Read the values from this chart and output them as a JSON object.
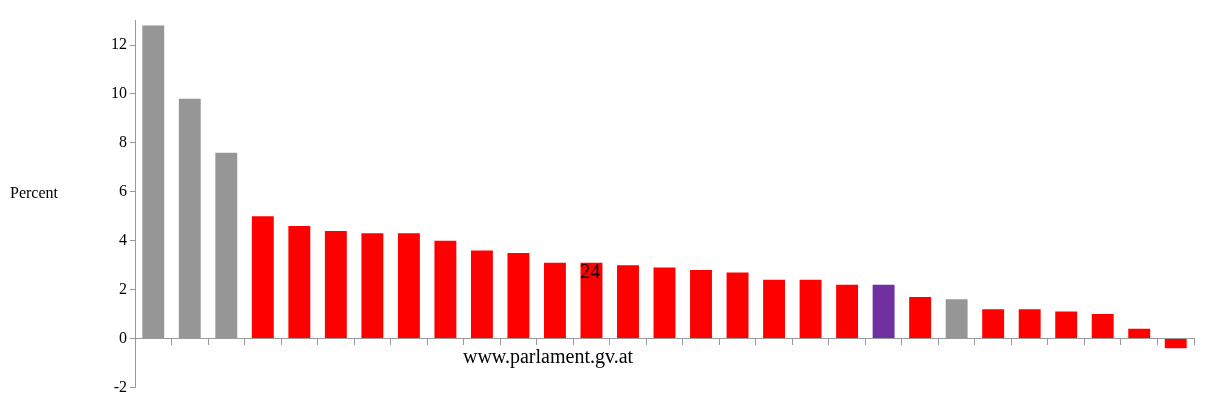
{
  "chart_data": {
    "type": "bar",
    "ylabel": "Percent",
    "categories": [
      null,
      null,
      null,
      null,
      null,
      null,
      null,
      null,
      null,
      null,
      null,
      null,
      null,
      null,
      null,
      null,
      null,
      null,
      null,
      null,
      null,
      null,
      null,
      null,
      null,
      null,
      null,
      null,
      null
    ],
    "values": [
      12.8,
      9.8,
      7.6,
      5.0,
      4.6,
      4.4,
      4.3,
      4.3,
      4.0,
      3.6,
      3.5,
      3.1,
      3.1,
      3.0,
      2.9,
      2.8,
      2.7,
      2.4,
      2.4,
      2.2,
      2.2,
      1.7,
      1.6,
      1.2,
      1.2,
      1.1,
      1.0,
      0.4,
      -0.4
    ],
    "colors": [
      "#969696",
      "#969696",
      "#969696",
      "#ff0000",
      "#ff0000",
      "#ff0000",
      "#ff0000",
      "#ff0000",
      "#ff0000",
      "#ff0000",
      "#ff0000",
      "#ff0000",
      "#ff0000",
      "#ff0000",
      "#ff0000",
      "#ff0000",
      "#ff0000",
      "#ff0000",
      "#ff0000",
      "#ff0000",
      "#7030a0",
      "#ff0000",
      "#969696",
      "#ff0000",
      "#ff0000",
      "#ff0000",
      "#ff0000",
      "#ff0000",
      "#ff0000"
    ],
    "ylim": [
      -2,
      13
    ],
    "yticks": [
      -2,
      0,
      2,
      4,
      6,
      8,
      10,
      12
    ],
    "legend": false,
    "annotations": [
      "24",
      "www.parlament.gv.at"
    ]
  }
}
